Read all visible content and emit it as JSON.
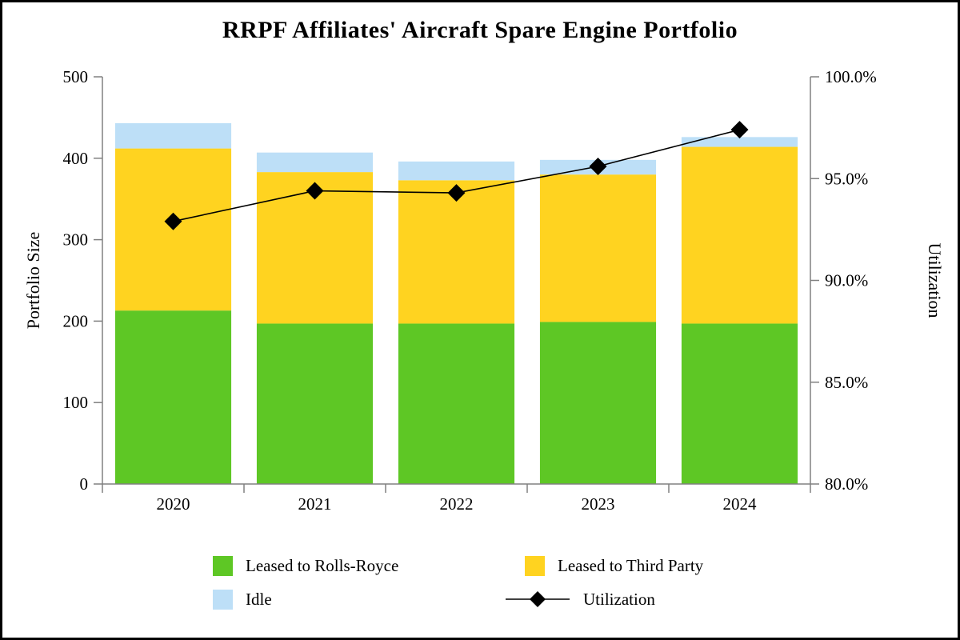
{
  "chart_data": {
    "type": "bar",
    "subtype": "stacked-bar-with-line",
    "title": "RRPF Affiliates' Aircraft Spare Engine Portfolio",
    "categories": [
      "2020",
      "2021",
      "2022",
      "2023",
      "2024"
    ],
    "bar_series": [
      {
        "name": "Leased to Rolls-Royce",
        "color": "#5ec725",
        "values": [
          213,
          197,
          197,
          199,
          197
        ]
      },
      {
        "name": "Leased to Third Party",
        "color": "#ffd320",
        "values": [
          199,
          186,
          176,
          181,
          217
        ]
      },
      {
        "name": "Idle",
        "color": "#bddff7",
        "values": [
          31,
          24,
          23,
          18,
          12
        ]
      }
    ],
    "line_series": {
      "name": "Utilization",
      "color": "#000000",
      "marker": "diamond",
      "values_pct": [
        92.9,
        94.4,
        94.3,
        95.6,
        97.4
      ]
    },
    "left_axis": {
      "label": "Portfolio Size",
      "min": 0,
      "max": 500,
      "tick_values": [
        0,
        100,
        200,
        300,
        400,
        500
      ],
      "tick_labels": [
        "0",
        "100",
        "200",
        "300",
        "400",
        "500"
      ]
    },
    "right_axis": {
      "label": "Utilization",
      "min": 80,
      "max": 100,
      "tick_values": [
        80,
        85,
        90,
        95,
        100
      ],
      "tick_labels": [
        "80.0%",
        "85.0%",
        "90.0%",
        "95.0%",
        "100.0%"
      ]
    },
    "axis_color": "#808080",
    "legend_position": "bottom",
    "grid": false
  }
}
